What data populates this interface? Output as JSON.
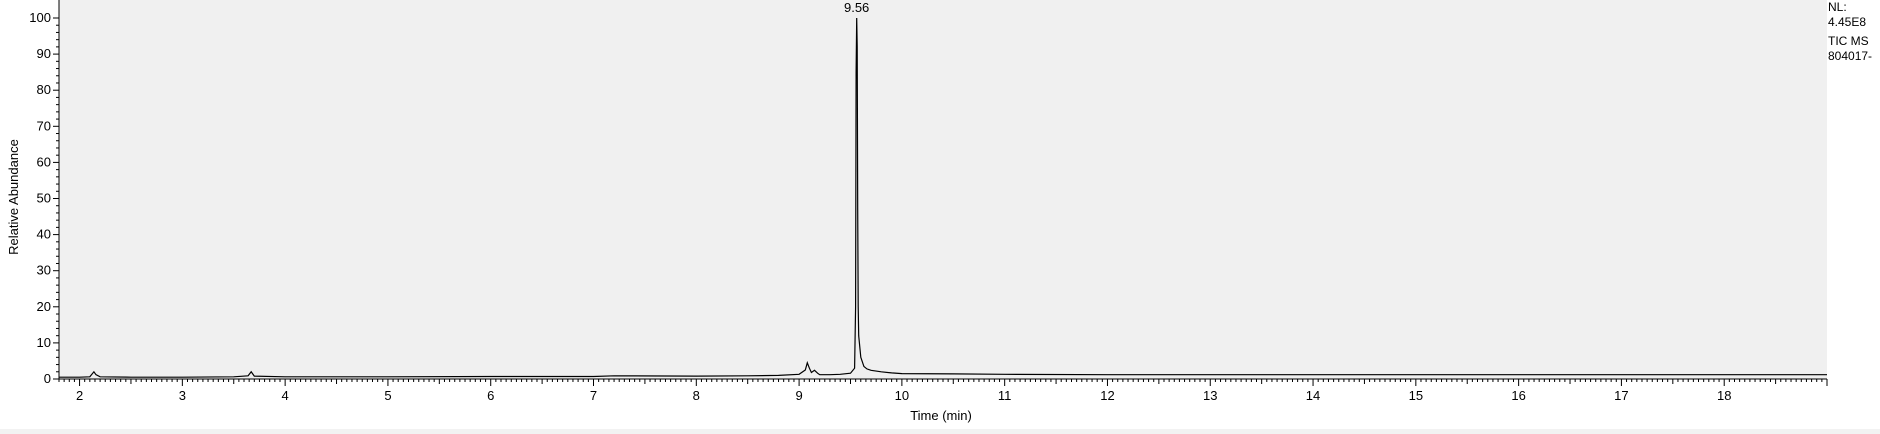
{
  "info": {
    "nl_label": "NL:",
    "nl_value": "4.45E8",
    "scan_filter": "TIC  MS",
    "file_name": "804017-"
  },
  "chart_data": {
    "type": "line",
    "title": "",
    "xlabel": "Time (min)",
    "ylabel": "Relative Abundance",
    "xlim": [
      1.8,
      19.0
    ],
    "ylim": [
      0,
      100
    ],
    "x_ticks": [
      2,
      3,
      4,
      5,
      6,
      7,
      8,
      9,
      10,
      11,
      12,
      13,
      14,
      15,
      16,
      17,
      18
    ],
    "y_ticks": [
      0,
      10,
      20,
      30,
      40,
      50,
      60,
      70,
      80,
      90,
      100
    ],
    "grid": false,
    "background": "#f0f0f0",
    "line_color": "#000000",
    "annotations": [
      {
        "x": 9.56,
        "y": 100,
        "text": "9.56"
      }
    ],
    "series": [
      {
        "x": [
          1.8,
          2.0,
          2.1,
          2.14,
          2.16,
          2.2,
          2.5,
          3.0,
          3.5,
          3.64,
          3.67,
          3.7,
          4.0,
          5.0,
          6.0,
          7.0,
          7.2,
          8.0,
          8.5,
          8.8,
          9.0,
          9.06,
          9.08,
          9.1,
          9.12,
          9.15,
          9.18,
          9.2,
          9.3,
          9.4,
          9.5,
          9.54,
          9.55,
          9.555,
          9.56,
          9.565,
          9.57,
          9.575,
          9.58,
          9.6,
          9.63,
          9.66,
          9.7,
          9.8,
          9.9,
          10.0,
          10.5,
          11.0,
          12.0,
          13.0,
          14.0,
          15.0,
          16.0,
          17.0,
          18.0,
          19.0
        ],
        "y": [
          0.5,
          0.5,
          0.6,
          2.0,
          1.2,
          0.6,
          0.5,
          0.5,
          0.6,
          0.9,
          2.0,
          0.8,
          0.6,
          0.6,
          0.7,
          0.7,
          0.9,
          0.8,
          0.9,
          1.0,
          1.3,
          2.5,
          4.5,
          3.0,
          1.8,
          2.4,
          1.6,
          1.2,
          1.2,
          1.3,
          1.6,
          3.0,
          20,
          85,
          100,
          92,
          47,
          20,
          12,
          6.0,
          3.5,
          2.8,
          2.4,
          2.0,
          1.7,
          1.5,
          1.4,
          1.3,
          1.2,
          1.2,
          1.2,
          1.2,
          1.2,
          1.2,
          1.2,
          1.2
        ]
      }
    ]
  }
}
